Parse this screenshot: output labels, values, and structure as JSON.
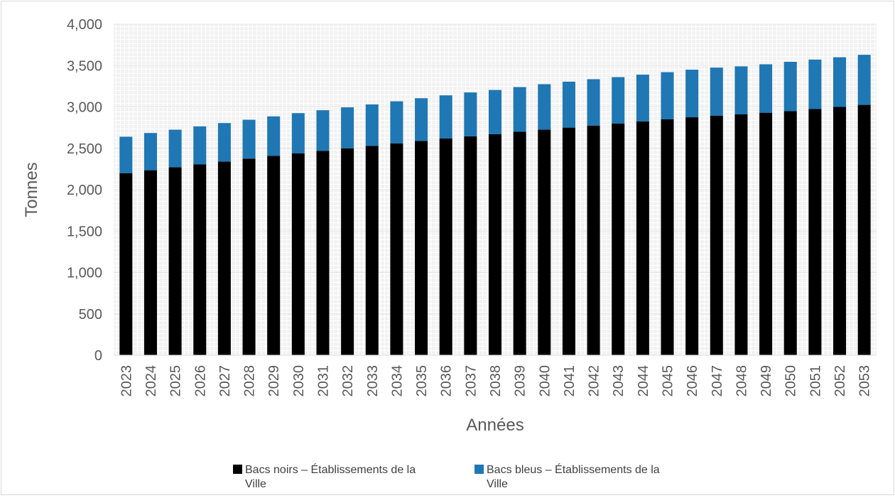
{
  "chart_data": {
    "type": "bar",
    "stacked": true,
    "title": "",
    "xlabel": "Années",
    "ylabel": "Tonnes",
    "ylim": [
      0,
      4000
    ],
    "ytick_step": 500,
    "ytick_labels": [
      "0",
      "500",
      "1,000",
      "1,500",
      "2,000",
      "2,500",
      "3,000",
      "3,500",
      "4,000"
    ],
    "grid": true,
    "legend_position": "bottom",
    "categories": [
      "2023",
      "2024",
      "2025",
      "2026",
      "2027",
      "2028",
      "2029",
      "2030",
      "2031",
      "2032",
      "2033",
      "2034",
      "2035",
      "2036",
      "2037",
      "2038",
      "2039",
      "2040",
      "2041",
      "2042",
      "2043",
      "2044",
      "2045",
      "2046",
      "2047",
      "2048",
      "2049",
      "2050",
      "2051",
      "2052",
      "2053"
    ],
    "series": [
      {
        "name_lines": [
          "Bacs noirs – Établissements de la",
          "Ville"
        ],
        "color": "#000000",
        "values": [
          2200,
          2235,
          2270,
          2305,
          2340,
          2375,
          2408,
          2440,
          2470,
          2500,
          2530,
          2560,
          2590,
          2620,
          2645,
          2670,
          2700,
          2725,
          2750,
          2775,
          2800,
          2825,
          2850,
          2875,
          2895,
          2910,
          2930,
          2950,
          2975,
          3000,
          3025
        ]
      },
      {
        "name_lines": [
          "Bacs bleus – Établissements de la",
          "Ville"
        ],
        "color": "#1f77b4",
        "values": [
          440,
          450,
          455,
          460,
          465,
          470,
          478,
          485,
          490,
          495,
          500,
          508,
          515,
          520,
          530,
          535,
          540,
          550,
          555,
          560,
          560,
          565,
          570,
          575,
          580,
          580,
          585,
          595,
          597,
          600,
          605
        ]
      }
    ]
  }
}
